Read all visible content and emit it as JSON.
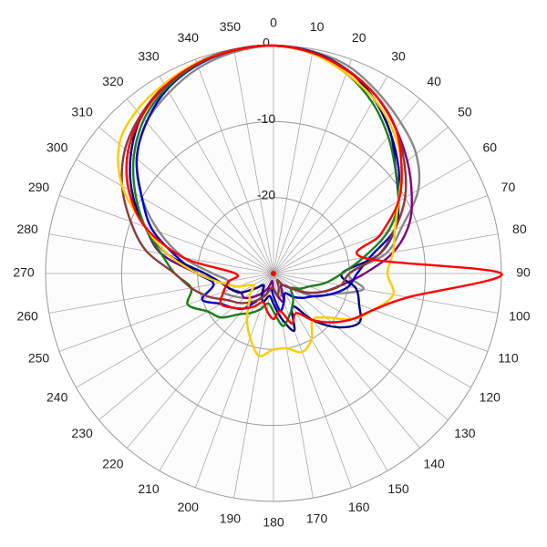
{
  "chart_data": {
    "type": "polar",
    "theta": [
      0,
      10,
      20,
      30,
      40,
      50,
      60,
      70,
      80,
      90,
      100,
      110,
      120,
      130,
      140,
      150,
      160,
      170,
      180,
      190,
      200,
      210,
      220,
      230,
      240,
      250,
      260,
      270,
      280,
      290,
      300,
      310,
      320,
      330,
      340,
      350
    ],
    "thetaticks": [
      0,
      10,
      20,
      30,
      40,
      50,
      60,
      70,
      80,
      90,
      100,
      110,
      120,
      130,
      140,
      150,
      160,
      170,
      180,
      190,
      200,
      210,
      220,
      230,
      240,
      250,
      260,
      270,
      280,
      290,
      300,
      310,
      320,
      330,
      340,
      350
    ],
    "rlim": [
      -30,
      0
    ],
    "rticks": [
      0,
      -10,
      -20
    ],
    "grid": true,
    "series": [
      {
        "color": "#888888",
        "values": [
          0,
          -0.3,
          -1,
          -2.5,
          -4,
          -5.5,
          -8,
          -12,
          -15,
          -20,
          -18,
          -22,
          -24,
          -27,
          -28,
          -28,
          -27,
          -27,
          -28,
          -28,
          -27,
          -27,
          -26,
          -25,
          -24,
          -23,
          -24,
          -22,
          -18,
          -14,
          -10,
          -6.5,
          -4,
          -2.5,
          -1.2,
          -0.4
        ]
      },
      {
        "color": "#7f007f",
        "values": [
          0,
          -0.5,
          -1.5,
          -3,
          -5,
          -7,
          -9,
          -11,
          -14,
          -18,
          -21,
          -23,
          -25,
          -27,
          -28,
          -28,
          -26,
          -27,
          -28,
          -29,
          -28,
          -27,
          -26,
          -25,
          -25,
          -24,
          -23,
          -20,
          -15,
          -12,
          -8,
          -5,
          -3,
          -1.5,
          -0.6,
          -0.1
        ]
      },
      {
        "color": "#0000cc",
        "values": [
          0,
          -0.5,
          -1.5,
          -3.5,
          -6,
          -8.5,
          -11,
          -13,
          -17,
          -19,
          -20,
          -22,
          -24,
          -25,
          -26,
          -27,
          -26,
          -25,
          -27,
          -28,
          -27,
          -26,
          -24,
          -23,
          -22,
          -20,
          -22,
          -20,
          -17,
          -13,
          -10,
          -6.5,
          -4,
          -2,
          -0.8,
          -0.2
        ]
      },
      {
        "color": "#000080",
        "values": [
          0,
          -0.4,
          -1.5,
          -3.5,
          -6,
          -9,
          -11,
          -13,
          -16,
          -21,
          -19,
          -18,
          -17,
          -19,
          -22,
          -25,
          -22,
          -24,
          -26,
          -27,
          -26,
          -27,
          -28,
          -27,
          -25,
          -24,
          -23,
          -21,
          -16,
          -12,
          -8.5,
          -5.5,
          -3,
          -1.5,
          -0.5,
          -0.1
        ]
      },
      {
        "color": "#1a7f1a",
        "values": [
          0,
          -0.6,
          -2,
          -4,
          -6.5,
          -9,
          -11,
          -14,
          -18,
          -21,
          -23,
          -25,
          -26,
          -27,
          -26,
          -25,
          -24,
          -23,
          -25,
          -26,
          -25,
          -24,
          -23,
          -21,
          -20,
          -18,
          -19,
          -17,
          -15,
          -12,
          -9,
          -6,
          -3.5,
          -1.8,
          -0.7,
          -0.2
        ]
      },
      {
        "color": "#8b3a3a",
        "values": [
          0,
          -0.5,
          -1.5,
          -3,
          -5,
          -7.5,
          -10,
          -13,
          -16,
          -20,
          -21,
          -23,
          -25,
          -27,
          -28,
          -29,
          -28,
          -27,
          -28,
          -28,
          -27,
          -26,
          -25,
          -24,
          -23,
          -21,
          -19,
          -17,
          -13,
          -10,
          -7,
          -4.5,
          -2.8,
          -1.4,
          -0.5,
          -0.1
        ]
      },
      {
        "color": "#ffcc00",
        "values": [
          0,
          -0.6,
          -2,
          -3.5,
          -5.5,
          -8,
          -11,
          -13,
          -14,
          -15,
          -14,
          -16,
          -18,
          -21,
          -22,
          -20,
          -19,
          -20,
          -20,
          -19,
          -21,
          -23,
          -25,
          -26,
          -27,
          -25,
          -23,
          -20,
          -16,
          -12,
          -7,
          -3.5,
          -2,
          -1.2,
          -0.5,
          -0.2
        ]
      },
      {
        "color": "#ff0000",
        "values": [
          0,
          -0.5,
          -1.6,
          -3,
          -5,
          -8,
          -11,
          -15,
          -18,
          0,
          -12,
          -16,
          -18,
          -20,
          -22,
          -24,
          -23,
          -25,
          -24,
          -25,
          -26,
          -25,
          -24,
          -23,
          -22,
          -23,
          -24,
          -25,
          -18,
          -12,
          -8,
          -5,
          -3,
          -1.5,
          -0.6,
          -0.2
        ]
      }
    ]
  }
}
